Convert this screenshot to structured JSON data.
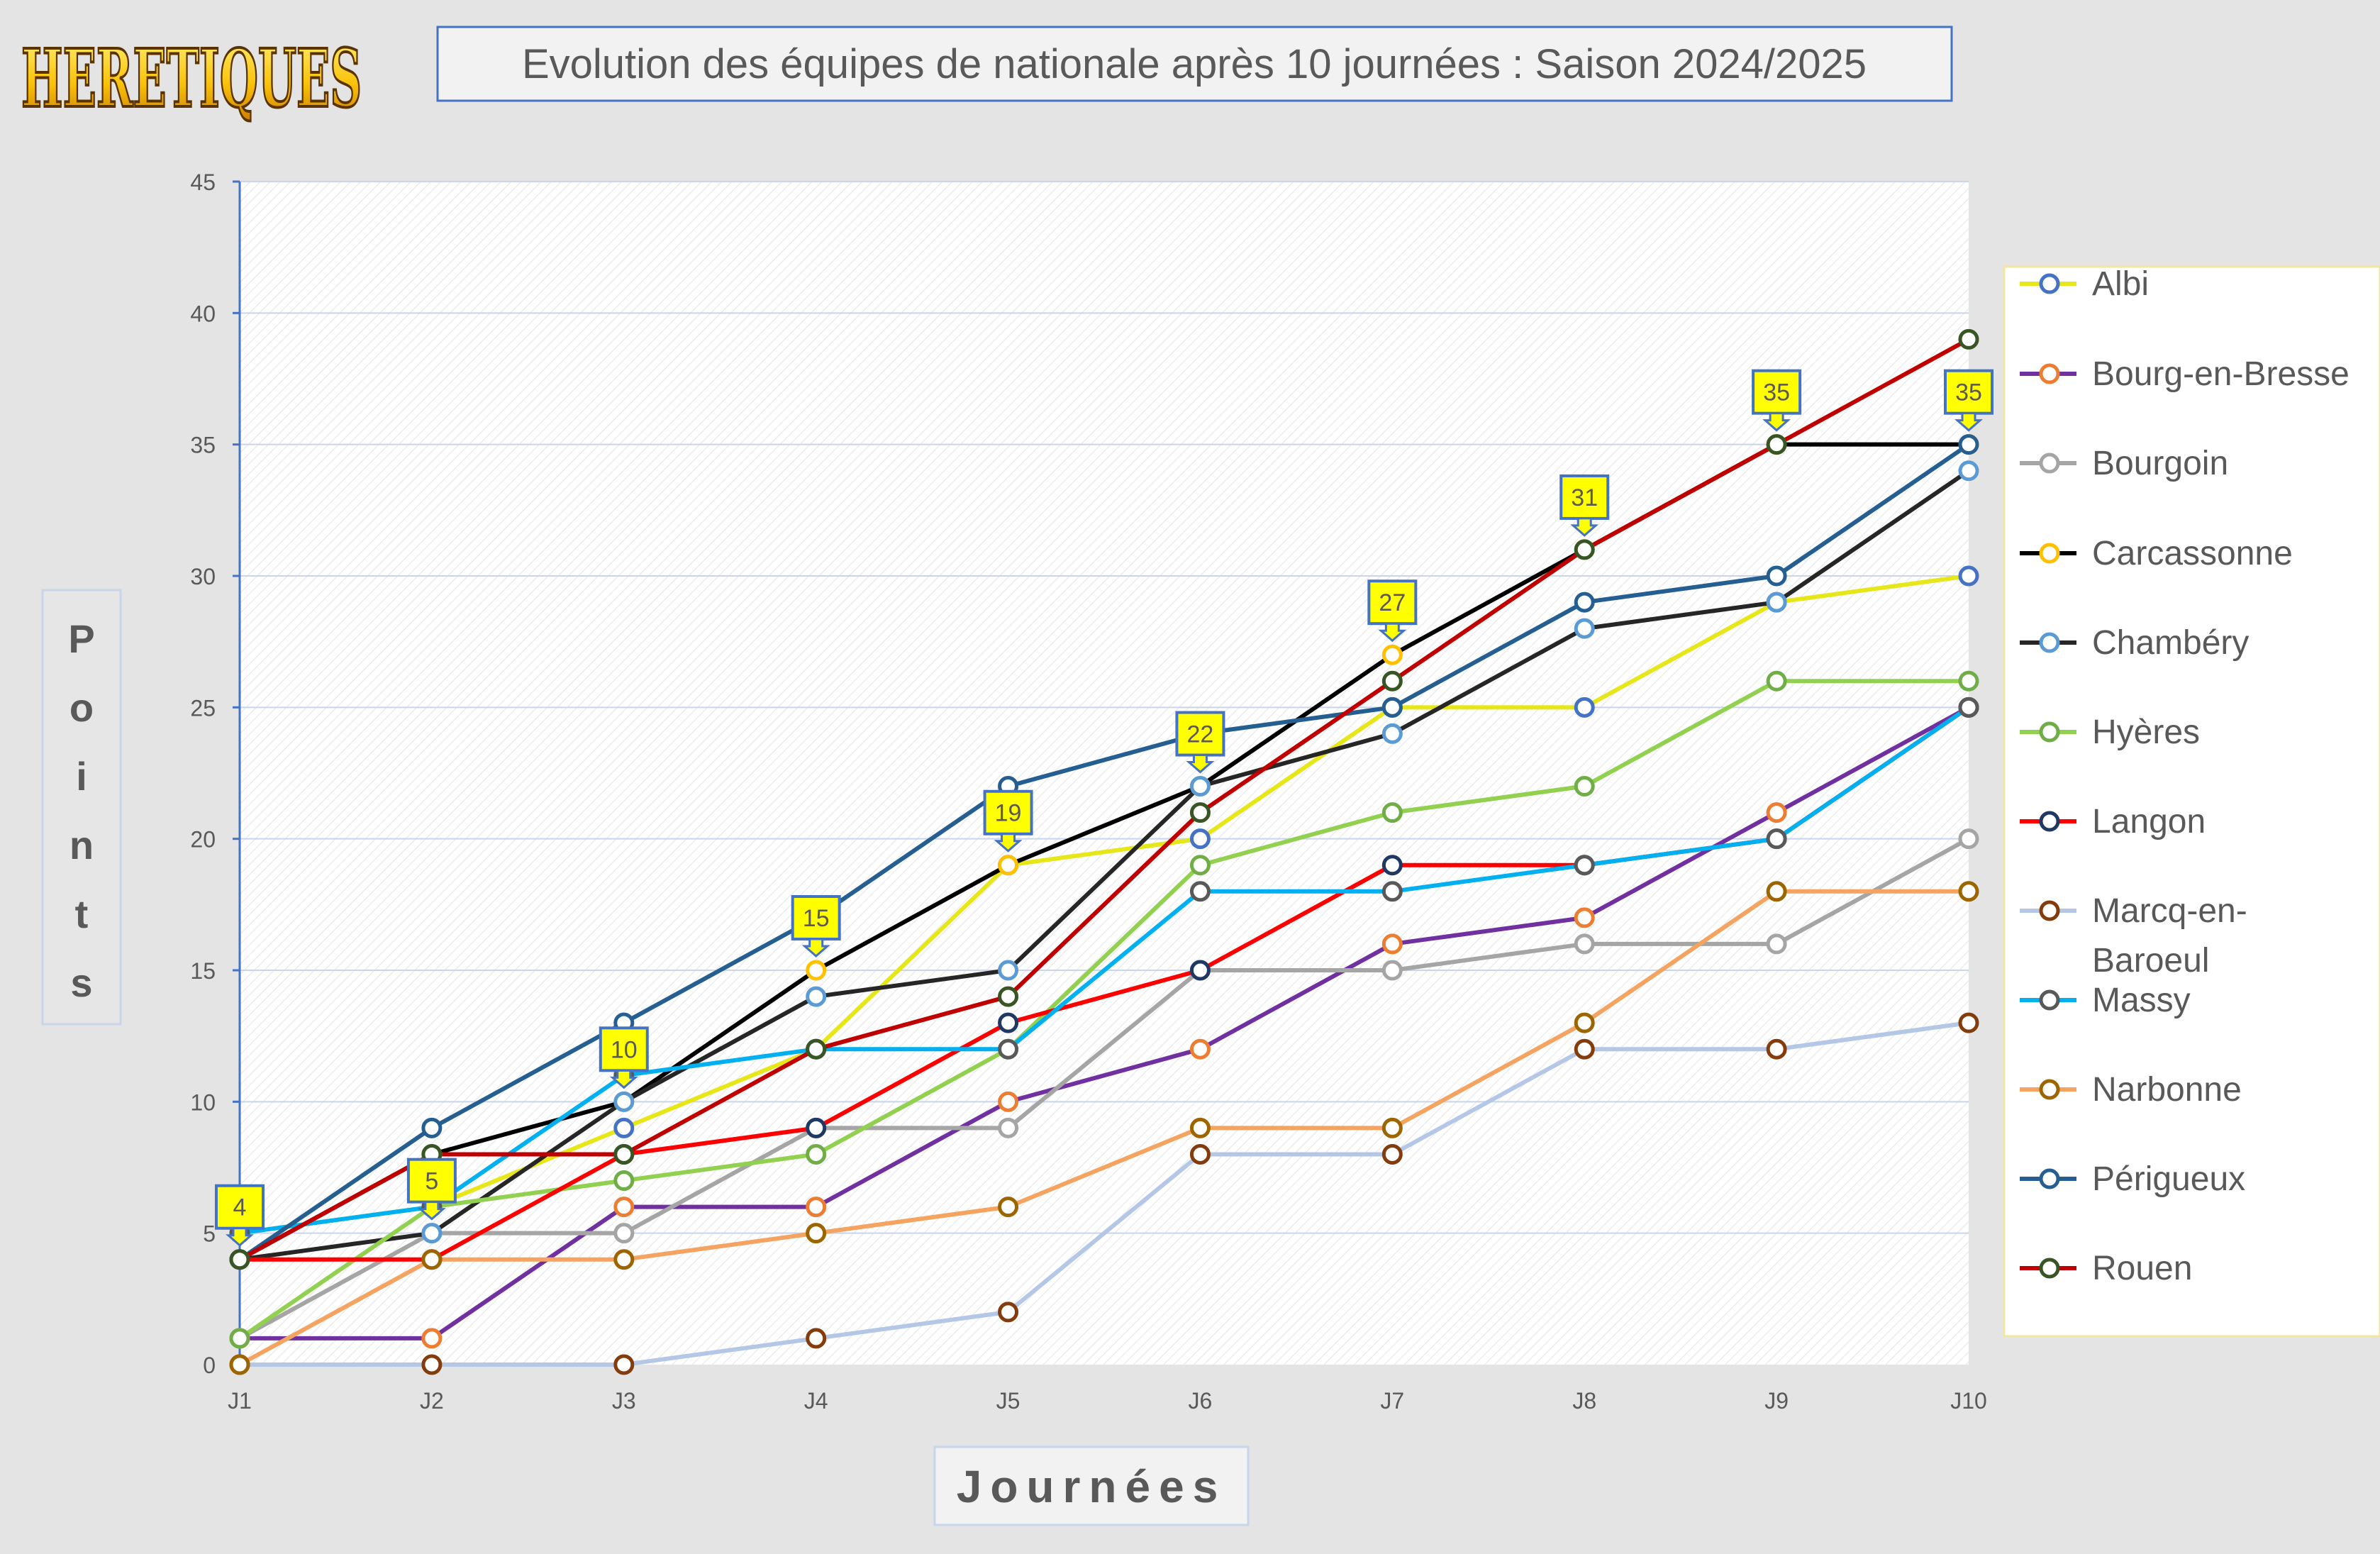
{
  "logo_text": "HERETIQUES",
  "chart_data": {
    "type": "line",
    "title": "Evolution des équipes de nationale après 10 journées : Saison 2024/2025",
    "xlabel": "Journées",
    "ylabel": "Points",
    "ylim": [
      0,
      45
    ],
    "yticks": [
      0,
      5,
      10,
      15,
      20,
      25,
      30,
      35,
      40,
      45
    ],
    "categories": [
      "J1",
      "J2",
      "J3",
      "J4",
      "J5",
      "J6",
      "J7",
      "J8",
      "J9",
      "J10"
    ],
    "grid": true,
    "legend_position": "right",
    "series": [
      {
        "name": "Albi",
        "line_color": "#e6e619",
        "marker_color": "#4472c4",
        "values": [
          5,
          6,
          9,
          12,
          19,
          20,
          25,
          25,
          29,
          30
        ]
      },
      {
        "name": "Bourg-en-Bresse",
        "line_color": "#7030a0",
        "marker_color": "#ed7d31",
        "values": [
          1,
          1,
          6,
          6,
          10,
          12,
          16,
          17,
          21,
          25
        ]
      },
      {
        "name": "Bourgoin",
        "line_color": "#a5a5a5",
        "marker_color": "#a5a5a5",
        "values": [
          1,
          5,
          5,
          9,
          9,
          15,
          15,
          16,
          16,
          20
        ]
      },
      {
        "name": "Carcassonne",
        "line_color": "#000000",
        "marker_color": "#ffc000",
        "values": [
          4,
          8,
          10,
          15,
          19,
          22,
          27,
          31,
          35,
          35
        ]
      },
      {
        "name": "Chambéry",
        "line_color": "#262626",
        "marker_color": "#5b9bd5",
        "values": [
          4,
          5,
          10,
          14,
          15,
          22,
          24,
          28,
          29,
          34
        ]
      },
      {
        "name": "Hyères",
        "line_color": "#92d050",
        "marker_color": "#70ad47",
        "values": [
          1,
          6,
          7,
          8,
          12,
          19,
          21,
          22,
          26,
          26
        ]
      },
      {
        "name": "Langon",
        "line_color": "#ff0000",
        "marker_color": "#1f3864",
        "values": [
          4,
          4,
          8,
          9,
          13,
          15,
          19,
          19,
          20,
          25
        ]
      },
      {
        "name": "Marcq-en-Baroeul",
        "line_color": "#b4c7e7",
        "marker_color": "#843c0c",
        "values": [
          0,
          0,
          0,
          1,
          2,
          8,
          8,
          12,
          12,
          13
        ]
      },
      {
        "name": "Massy",
        "line_color": "#00b0f0",
        "marker_color": "#595959",
        "values": [
          5,
          6,
          11,
          12,
          12,
          18,
          18,
          19,
          20,
          25
        ]
      },
      {
        "name": "Narbonne",
        "line_color": "#f4a460",
        "marker_color": "#9c6500",
        "values": [
          0,
          4,
          4,
          5,
          6,
          9,
          9,
          13,
          18,
          18
        ]
      },
      {
        "name": "Périgueux",
        "line_color": "#255e91",
        "marker_color": "#255e91",
        "values": [
          4,
          9,
          13,
          17,
          22,
          24,
          25,
          29,
          30,
          35
        ]
      },
      {
        "name": "Rouen",
        "line_color": "#c00000",
        "marker_color": "#375623",
        "values": [
          4,
          8,
          8,
          12,
          14,
          21,
          26,
          31,
          35,
          39
        ]
      }
    ],
    "leader_callouts": [
      {
        "x": "J1",
        "value": 4,
        "label": "4"
      },
      {
        "x": "J2",
        "value": 5,
        "label": "5"
      },
      {
        "x": "J3",
        "value": 10,
        "label": "10"
      },
      {
        "x": "J4",
        "value": 15,
        "label": "15"
      },
      {
        "x": "J5",
        "value": 19,
        "label": "19"
      },
      {
        "x": "J6",
        "value": 22,
        "label": "22"
      },
      {
        "x": "J7",
        "value": 27,
        "label": "27"
      },
      {
        "x": "J8",
        "value": 31,
        "label": "31"
      },
      {
        "x": "J9",
        "value": 35,
        "label": "35"
      },
      {
        "x": "J10",
        "value": 35,
        "label": "35"
      }
    ]
  }
}
